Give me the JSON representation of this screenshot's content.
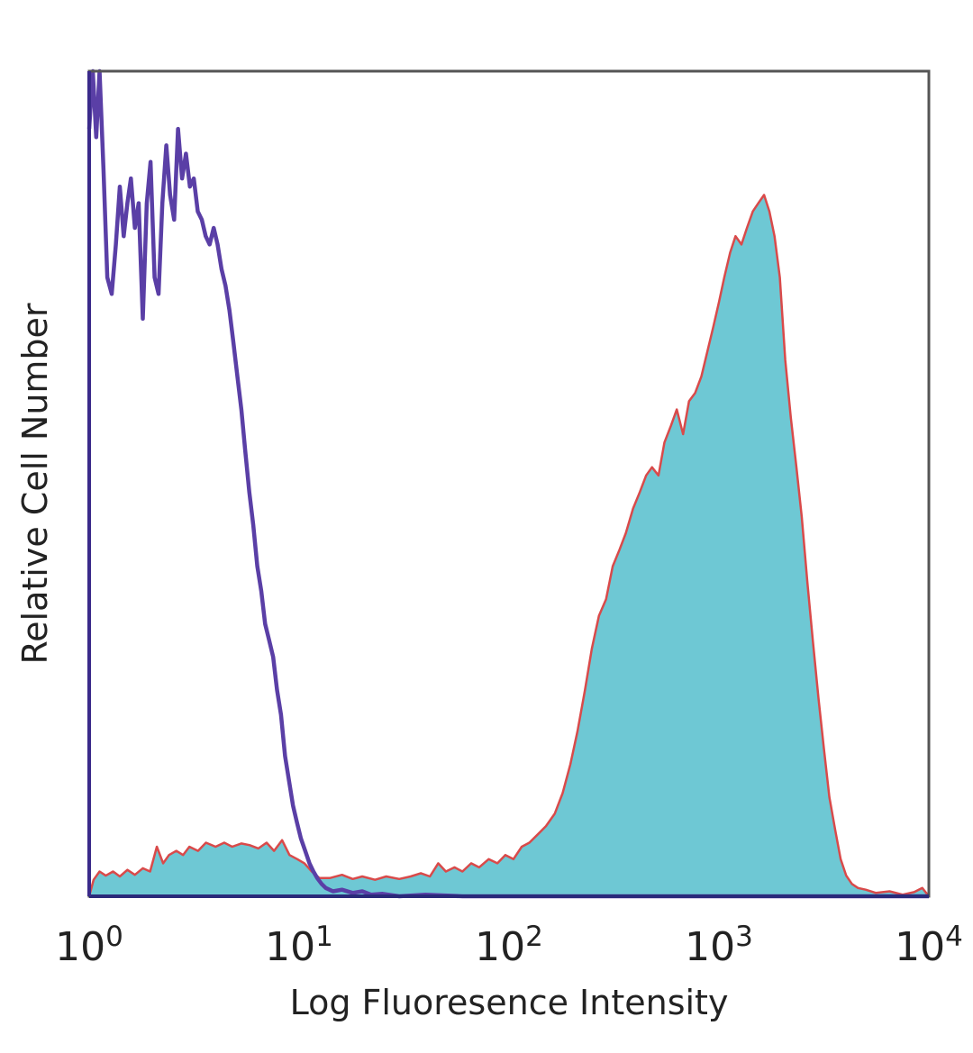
{
  "chart_data": {
    "type": "area",
    "title": "",
    "xlabel": "Log Fluoresence Intensity",
    "ylabel": "Relative Cell Number",
    "x_scale": "log",
    "xlim": [
      1,
      10000
    ],
    "ylim": [
      0,
      100
    ],
    "x_ticks": [
      {
        "value": 1,
        "base": "10",
        "exp": "0"
      },
      {
        "value": 10,
        "base": "10",
        "exp": "1"
      },
      {
        "value": 100,
        "base": "10",
        "exp": "2"
      },
      {
        "value": 1000,
        "base": "10",
        "exp": "3"
      },
      {
        "value": 10000,
        "base": "10",
        "exp": "4"
      }
    ],
    "grid": false,
    "legend": "none",
    "series": [
      {
        "style": "line",
        "color": "#5a3fa6",
        "points": [
          [
            1.0,
            93
          ],
          [
            1.04,
            100
          ],
          [
            1.08,
            92
          ],
          [
            1.12,
            100
          ],
          [
            1.17,
            88
          ],
          [
            1.22,
            75
          ],
          [
            1.28,
            73
          ],
          [
            1.34,
            79
          ],
          [
            1.4,
            86
          ],
          [
            1.46,
            80
          ],
          [
            1.52,
            84
          ],
          [
            1.58,
            87
          ],
          [
            1.65,
            81
          ],
          [
            1.72,
            84
          ],
          [
            1.8,
            70
          ],
          [
            1.88,
            84
          ],
          [
            1.96,
            89
          ],
          [
            2.05,
            75
          ],
          [
            2.14,
            73
          ],
          [
            2.23,
            84
          ],
          [
            2.33,
            91
          ],
          [
            2.43,
            85
          ],
          [
            2.54,
            82
          ],
          [
            2.65,
            93
          ],
          [
            2.77,
            87
          ],
          [
            2.89,
            90
          ],
          [
            3.02,
            86
          ],
          [
            3.15,
            87
          ],
          [
            3.29,
            83
          ],
          [
            3.44,
            82
          ],
          [
            3.59,
            80
          ],
          [
            3.75,
            79
          ],
          [
            3.92,
            81
          ],
          [
            4.09,
            79
          ],
          [
            4.27,
            76
          ],
          [
            4.46,
            74
          ],
          [
            4.66,
            71
          ],
          [
            4.87,
            67
          ],
          [
            5.08,
            63
          ],
          [
            5.31,
            59
          ],
          [
            5.54,
            54
          ],
          [
            5.79,
            49
          ],
          [
            6.05,
            45
          ],
          [
            6.32,
            40
          ],
          [
            6.6,
            37
          ],
          [
            6.89,
            33
          ],
          [
            7.2,
            31
          ],
          [
            7.52,
            29
          ],
          [
            7.85,
            25
          ],
          [
            8.2,
            22
          ],
          [
            8.57,
            17
          ],
          [
            8.95,
            14
          ],
          [
            9.35,
            11
          ],
          [
            9.76,
            9
          ],
          [
            10.2,
            7
          ],
          [
            10.7,
            5.5
          ],
          [
            11.2,
            4
          ],
          [
            11.7,
            3
          ],
          [
            12.2,
            2.2
          ],
          [
            12.8,
            1.5
          ],
          [
            13.4,
            1
          ],
          [
            14.5,
            0.6
          ],
          [
            16,
            0.8
          ],
          [
            18,
            0.4
          ],
          [
            20,
            0.6
          ],
          [
            22,
            0.2
          ],
          [
            25,
            0.3
          ],
          [
            30,
            0
          ],
          [
            40,
            0.2
          ],
          [
            60,
            0
          ],
          [
            100,
            0
          ],
          [
            1000,
            0
          ],
          [
            10000,
            0
          ]
        ]
      },
      {
        "style": "filled",
        "color": "#6ec8d4",
        "outline_color": "#d94a4a",
        "points": [
          [
            1.0,
            0
          ],
          [
            1.05,
            2
          ],
          [
            1.12,
            3
          ],
          [
            1.2,
            2.5
          ],
          [
            1.3,
            3
          ],
          [
            1.4,
            2.4
          ],
          [
            1.52,
            3.2
          ],
          [
            1.65,
            2.6
          ],
          [
            1.8,
            3.4
          ],
          [
            1.95,
            3
          ],
          [
            2.1,
            6
          ],
          [
            2.25,
            4
          ],
          [
            2.4,
            5
          ],
          [
            2.6,
            5.5
          ],
          [
            2.8,
            5
          ],
          [
            3.0,
            6
          ],
          [
            3.3,
            5.5
          ],
          [
            3.6,
            6.5
          ],
          [
            4.0,
            6
          ],
          [
            4.4,
            6.5
          ],
          [
            4.8,
            6
          ],
          [
            5.3,
            6.4
          ],
          [
            5.8,
            6.2
          ],
          [
            6.4,
            5.8
          ],
          [
            7.0,
            6.5
          ],
          [
            7.6,
            5.5
          ],
          [
            8.3,
            6.8
          ],
          [
            9.0,
            5
          ],
          [
            9.8,
            4.5
          ],
          [
            10.6,
            4
          ],
          [
            11.5,
            3
          ],
          [
            12.5,
            2.2
          ],
          [
            14,
            2.2
          ],
          [
            16,
            2.6
          ],
          [
            18,
            2.1
          ],
          [
            20,
            2.4
          ],
          [
            23,
            2.0
          ],
          [
            26,
            2.4
          ],
          [
            30,
            2.1
          ],
          [
            34,
            2.4
          ],
          [
            38,
            2.8
          ],
          [
            42,
            2.4
          ],
          [
            46,
            4
          ],
          [
            50,
            3
          ],
          [
            55,
            3.5
          ],
          [
            60,
            3
          ],
          [
            66,
            4
          ],
          [
            72,
            3.5
          ],
          [
            80,
            4.5
          ],
          [
            88,
            4
          ],
          [
            96,
            5
          ],
          [
            105,
            4.5
          ],
          [
            115,
            6
          ],
          [
            125,
            6.5
          ],
          [
            137,
            7.5
          ],
          [
            150,
            8.5
          ],
          [
            165,
            10
          ],
          [
            180,
            12.5
          ],
          [
            196,
            16
          ],
          [
            212,
            20
          ],
          [
            230,
            25
          ],
          [
            248,
            30
          ],
          [
            268,
            34
          ],
          [
            290,
            36
          ],
          [
            312,
            40
          ],
          [
            336,
            42
          ],
          [
            360,
            44
          ],
          [
            390,
            47
          ],
          [
            420,
            49
          ],
          [
            450,
            51
          ],
          [
            480,
            52
          ],
          [
            515,
            51
          ],
          [
            550,
            55
          ],
          [
            590,
            57
          ],
          [
            630,
            59
          ],
          [
            675,
            56
          ],
          [
            720,
            60
          ],
          [
            770,
            61
          ],
          [
            825,
            63
          ],
          [
            880,
            66
          ],
          [
            940,
            69
          ],
          [
            1000,
            72
          ],
          [
            1060,
            75
          ],
          [
            1130,
            78
          ],
          [
            1200,
            80
          ],
          [
            1280,
            79
          ],
          [
            1360,
            81
          ],
          [
            1450,
            83
          ],
          [
            1540,
            84
          ],
          [
            1640,
            85
          ],
          [
            1740,
            83
          ],
          [
            1840,
            80
          ],
          [
            1950,
            75
          ],
          [
            2070,
            65
          ],
          [
            2200,
            58
          ],
          [
            2340,
            52
          ],
          [
            2480,
            46
          ],
          [
            2640,
            38
          ],
          [
            2800,
            31
          ],
          [
            2980,
            24
          ],
          [
            3160,
            18
          ],
          [
            3360,
            12
          ],
          [
            3580,
            8
          ],
          [
            3800,
            4.5
          ],
          [
            4040,
            2.5
          ],
          [
            4300,
            1.5
          ],
          [
            4600,
            1
          ],
          [
            5000,
            0.8
          ],
          [
            5600,
            0.4
          ],
          [
            6500,
            0.6
          ],
          [
            7500,
            0.2
          ],
          [
            8500,
            0.5
          ],
          [
            9300,
            1
          ],
          [
            10000,
            0
          ]
        ]
      }
    ]
  }
}
